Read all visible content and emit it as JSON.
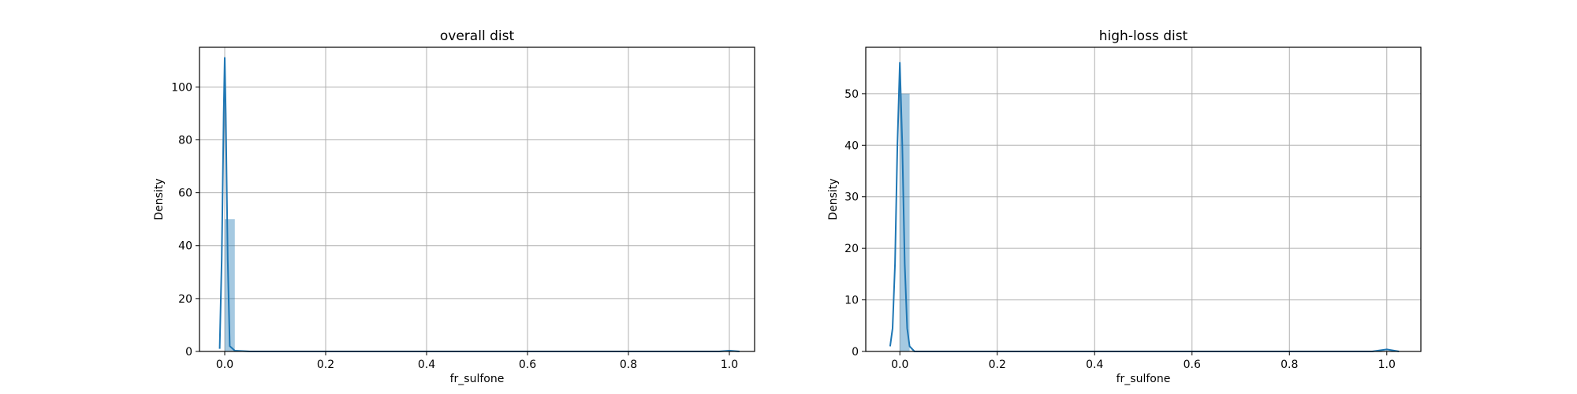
{
  "colors": {
    "series": "#1f77b4",
    "grid": "#b0b0b0"
  },
  "chart_data": [
    {
      "type": "histogram",
      "title": "overall dist",
      "xlabel": "fr_sulfone",
      "ylabel": "Density",
      "grid": true,
      "xlim": [
        -0.05,
        1.05
      ],
      "ylim": [
        0,
        115
      ],
      "xticks": [
        0.0,
        0.2,
        0.4,
        0.6,
        0.8,
        1.0
      ],
      "xtick_labels": [
        "0.0",
        "0.2",
        "0.4",
        "0.6",
        "0.8",
        "1.0"
      ],
      "yticks": [
        0,
        20,
        40,
        60,
        80,
        100
      ],
      "ytick_labels": [
        "0",
        "20",
        "40",
        "60",
        "80",
        "100"
      ],
      "bins": [
        {
          "x0": 0.0,
          "x1": 0.02,
          "density": 50
        }
      ],
      "kde": {
        "x": [
          -0.01,
          -0.006,
          -0.002,
          0.0,
          0.002,
          0.006,
          0.01,
          0.02,
          0.05,
          0.2,
          0.4,
          0.6,
          0.8,
          0.98,
          1.0,
          1.02
        ],
        "y": [
          1,
          35,
          90,
          111,
          90,
          35,
          2,
          0.3,
          0,
          0,
          0,
          0,
          0,
          0,
          0.3,
          0
        ]
      }
    },
    {
      "type": "histogram",
      "title": "high-loss dist",
      "xlabel": "fr_sulfone",
      "ylabel": "Density",
      "grid": true,
      "xlim": [
        -0.07,
        1.07
      ],
      "ylim": [
        0,
        59
      ],
      "xticks": [
        0.0,
        0.2,
        0.4,
        0.6,
        0.8,
        1.0
      ],
      "xtick_labels": [
        "0.0",
        "0.2",
        "0.4",
        "0.6",
        "0.8",
        "1.0"
      ],
      "yticks": [
        0,
        10,
        20,
        30,
        40,
        50
      ],
      "ytick_labels": [
        "0",
        "10",
        "20",
        "30",
        "40",
        "50"
      ],
      "bins": [
        {
          "x0": 0.0,
          "x1": 0.02,
          "density": 50
        }
      ],
      "kde": {
        "x": [
          -0.02,
          -0.015,
          -0.01,
          -0.005,
          0.0,
          0.005,
          0.01,
          0.015,
          0.02,
          0.03,
          0.2,
          0.4,
          0.6,
          0.8,
          0.97,
          1.0,
          1.025
        ],
        "y": [
          1,
          4.5,
          17,
          40,
          56,
          40,
          17,
          4.5,
          1,
          0,
          0,
          0,
          0,
          0,
          0,
          0.4,
          0
        ]
      }
    }
  ]
}
